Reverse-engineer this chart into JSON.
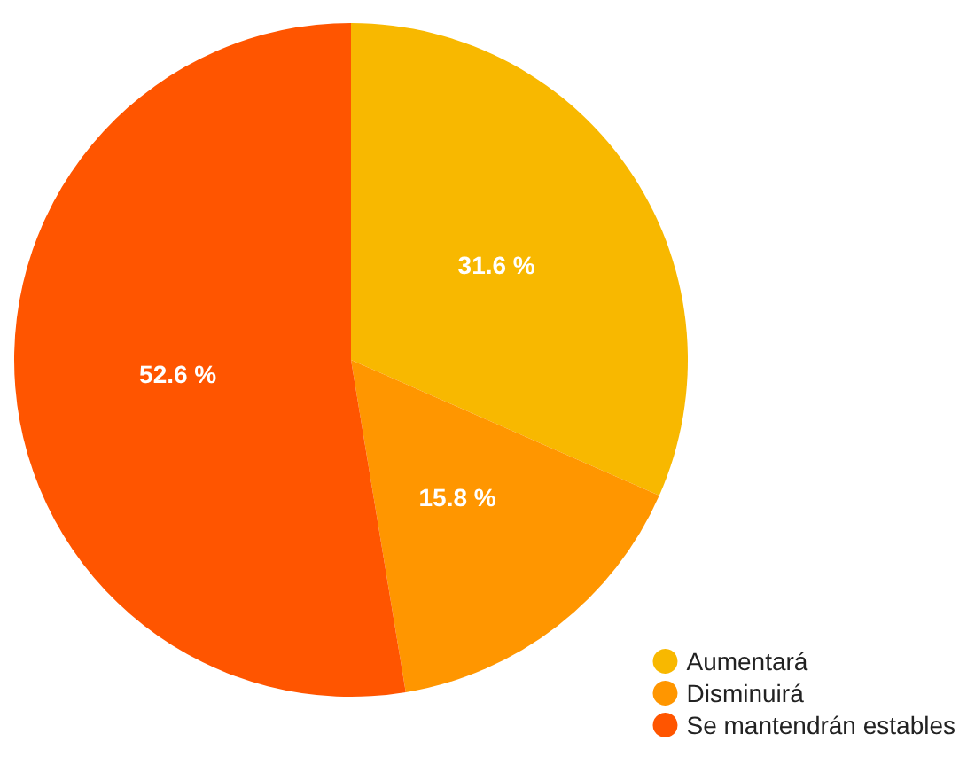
{
  "chart_data": {
    "type": "pie",
    "categories": [
      "Aumentará",
      "Disminuirá",
      "Se mantendrán estables"
    ],
    "values": [
      31.6,
      15.8,
      52.6
    ],
    "colors": [
      "#f8b800",
      "#ff9600",
      "#ff5500"
    ],
    "value_labels": [
      "31.6 %",
      "15.8 %",
      "52.6 %"
    ],
    "legend": "bottom right"
  }
}
